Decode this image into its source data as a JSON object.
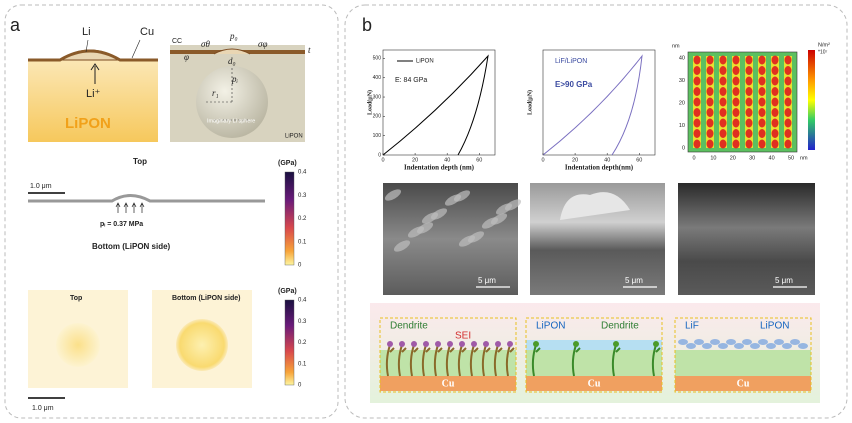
{
  "panel_a": {
    "label": "a",
    "schematic": {
      "li": "Li",
      "cu": "Cu",
      "li_ion": "Li⁺",
      "lipon": "LiPON"
    },
    "model": {
      "cc": "CC",
      "sigma_theta": "σθ",
      "p0": "p₀",
      "sigma_phi": "σφ",
      "t": "t",
      "phi": "φ",
      "d0": "d₀",
      "pi": "pᵢ",
      "r1": "r₁",
      "sphere": "Imaginary Li sphere",
      "lipon": "LiPON"
    },
    "top_title": "Top",
    "colorbar1": {
      "unit": "(GPa)",
      "ticks": [
        "0.4",
        "0.3",
        "0.2",
        "0.1",
        "0"
      ]
    },
    "scale1": "1.0 μm",
    "pressure": "pᵢ = 0.37 MPa",
    "bottom_title": "Bottom (LiPON side)",
    "colorbar2": {
      "unit": "(GPa)",
      "ticks": [
        "0.4",
        "0.3",
        "0.2",
        "0.1",
        "0"
      ]
    },
    "map_top": "Top",
    "map_bottom": "Bottom (LiPON side)",
    "scale2": "1.0 μm"
  },
  "panel_b": {
    "label": "b",
    "plot1": {
      "legend": "LiPON",
      "modulus": "E:  84 GPa",
      "ylabel": "Load(μN)",
      "xlabel": "Indentation depth (nm)",
      "yticks": [
        "0",
        "100",
        "200",
        "300",
        "400",
        "500"
      ],
      "xticks": [
        "0",
        "20",
        "40",
        "60"
      ]
    },
    "plot2": {
      "legend": "LiF/LiPON",
      "modulus": "E>90 GPa",
      "ylabel": "Load(μN)",
      "xlabel": "Indentation depth(nm)",
      "xticks": [
        "0",
        "20",
        "40",
        "60"
      ]
    },
    "map": {
      "yunit": "nm",
      "xunit": "nm",
      "yticks": [
        "0",
        "10",
        "20",
        "30",
        "40"
      ],
      "xticks": [
        "0",
        "10",
        "20",
        "30",
        "40",
        "50"
      ],
      "colorbar_unit": "N/m²",
      "colorbar_exp": "*10⁷"
    },
    "sem_scales": [
      "5 μm",
      "5 μm",
      "5 μm"
    ],
    "schematics": [
      {
        "labels": [
          "Dendrite",
          "SEI"
        ],
        "base": "Cu"
      },
      {
        "labels": [
          "LiPON",
          "Dendrite"
        ],
        "base": "Cu"
      },
      {
        "labels": [
          "LiF",
          "LiPON"
        ],
        "base": "Cu"
      }
    ]
  }
}
